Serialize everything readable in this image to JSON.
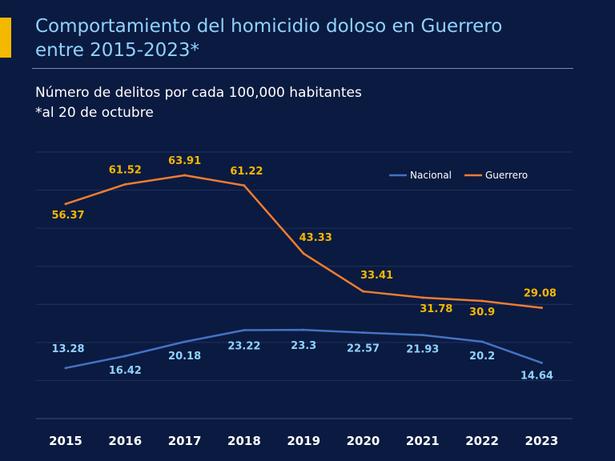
{
  "title_line1": "Comportamiento del homicidio doloso en Guerrero",
  "title_line2": "entre 2015-2023*",
  "subtitle_line1": "Número de delitos por cada 100,000 habitantes",
  "subtitle_line2": "*al 20 de octubre",
  "colors": {
    "background": "#0b1a40",
    "accent": "#f5b800",
    "title": "#8fd3ff",
    "nacional": "#4472c4",
    "guerrero": "#ed7d31",
    "nacional_label": "#8fd3ff",
    "guerrero_label": "#f5b800"
  },
  "chart_data": {
    "type": "line",
    "categories": [
      "2015",
      "2016",
      "2017",
      "2018",
      "2019",
      "2020",
      "2021",
      "2022",
      "2023"
    ],
    "series": [
      {
        "name": "Nacional",
        "values": [
          13.28,
          16.42,
          20.18,
          23.22,
          23.3,
          22.57,
          21.93,
          20.2,
          14.64
        ]
      },
      {
        "name": "Guerrero",
        "values": [
          56.37,
          61.52,
          63.91,
          61.22,
          43.33,
          33.41,
          31.78,
          30.9,
          29.08
        ]
      }
    ],
    "data_labels": {
      "Nacional": [
        "13.28",
        "16.42",
        "20.18",
        "23.22",
        "23.3",
        "22.57",
        "21.93",
        "20.2",
        "14.64"
      ],
      "Guerrero": [
        "56.37",
        "61.52",
        "63.91",
        "61.22",
        "43.33",
        "33.41",
        "31.78",
        "30.9",
        "29.08"
      ]
    },
    "ylim": [
      0,
      70
    ],
    "grid": true,
    "legend_position": "top-right",
    "xlabel": "",
    "ylabel": ""
  }
}
